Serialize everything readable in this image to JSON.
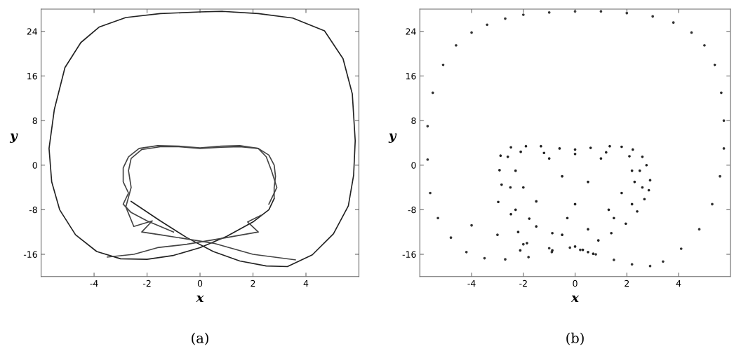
{
  "chart_data": [
    {
      "type": "line",
      "title": "(a)",
      "xlabel": "x",
      "ylabel": "y",
      "xlim": [
        -6,
        6
      ],
      "ylim": [
        -20,
        28
      ],
      "xticks": [
        -4,
        -2,
        0,
        2,
        4
      ],
      "yticks": [
        -16,
        -8,
        0,
        8,
        16,
        24
      ],
      "grid": false,
      "marker": "none",
      "line_style": "solid",
      "series": [
        {
          "color": "#222222",
          "x": [
            -2.6,
            -1.5,
            -0.5,
            0.5,
            1.5,
            2.5,
            3.3,
            4.24,
            5.04,
            5.6,
            5.8,
            5.86,
            5.75,
            5.4,
            4.7,
            3.5,
            2.2,
            0.86,
            0,
            -1.5,
            -2.8,
            -3.8,
            -4.5,
            -5.1,
            -5.5,
            -5.7,
            -5.6,
            -5.3,
            -4.7,
            -3.9,
            -3,
            -2,
            -1,
            0,
            1,
            2,
            2.6,
            2.8
          ],
          "values": [
            -6.5,
            -10,
            -13,
            -15.5,
            -17.2,
            -18.1,
            -18.2,
            -16.1,
            -12.3,
            -7.3,
            -1.8,
            4.4,
            12.8,
            19.1,
            24.1,
            26.4,
            27.2,
            27.6,
            27.5,
            27.2,
            26.5,
            24.8,
            22,
            17.5,
            10,
            3,
            -3,
            -8,
            -12.5,
            -15.5,
            -16.8,
            -16.9,
            -16.2,
            -14.8,
            -12.8,
            -10.2,
            -8,
            -6
          ]
        },
        {
          "color": "#444444",
          "x": [
            2.8,
            2.8,
            2.85,
            2.8,
            2.6,
            2.2,
            1.5,
            0.8,
            0,
            -0.8,
            -1.6,
            -2.3,
            -2.7,
            -2.9,
            -2.9,
            -2.7,
            -2.9,
            -2.6,
            -2,
            -1
          ],
          "values": [
            -6,
            -4,
            -2,
            0,
            1.8,
            3,
            3.5,
            3.4,
            3.1,
            3.4,
            3.5,
            3,
            1.5,
            -0.5,
            -3,
            -5,
            -7,
            -8.5,
            -10,
            -12
          ]
        },
        {
          "color": "#444444",
          "x": [
            2.6,
            2.9,
            2.7,
            2.5,
            2.2,
            1.5,
            0.8,
            0,
            -0.8,
            -1.5,
            -2.2,
            -2.6,
            -2.7,
            -2.6,
            -2.8,
            -2.5,
            -1.8,
            -2.2,
            -1.5,
            0.5,
            2,
            3.6
          ],
          "values": [
            -7,
            -4,
            -1,
            1.5,
            3,
            3.3,
            3.2,
            3,
            3.3,
            3.3,
            2.8,
            1.2,
            -1,
            -4,
            -7.5,
            -11,
            -10,
            -12,
            -12.5,
            -14,
            -16,
            -17
          ]
        },
        {
          "color": "#444444",
          "x": [
            2.3,
            1.8,
            2.2,
            1,
            -0.5,
            -1.6,
            -2.5,
            -3.5
          ],
          "values": [
            -9,
            -10.2,
            -12,
            -13,
            -14.2,
            -14.8,
            -16,
            -16.5
          ]
        }
      ]
    },
    {
      "type": "scatter",
      "title": "(b)",
      "xlabel": "x",
      "ylabel": "y",
      "xlim": [
        -6,
        6
      ],
      "ylim": [
        -20,
        28
      ],
      "xticks": [
        -4,
        -2,
        0,
        2,
        4
      ],
      "yticks": [
        -16,
        -8,
        0,
        8,
        16,
        24
      ],
      "grid": false,
      "marker": "circle",
      "series": [
        {
          "color": "#333333",
          "x": [
            0,
            1,
            2,
            3,
            3.8,
            4.5,
            5,
            5.4,
            5.65,
            5.75,
            5.75,
            5.6,
            5.3,
            4.8,
            4.1,
            3.4,
            2.9,
            2.2,
            1.5,
            0.8,
            0.2,
            -1,
            -2,
            -2.7,
            -3.4,
            -4,
            -4.6,
            -5.1,
            -5.5,
            -5.7,
            -5.7,
            -5.6,
            -5.3,
            -4.8,
            -4.2,
            -3.5,
            -2.7,
            -1.8,
            -0.9,
            -0.2,
            -1,
            -2,
            -3,
            -4
          ],
          "values": [
            27.6,
            27.6,
            27.3,
            26.7,
            25.6,
            23.8,
            21.5,
            18,
            13,
            8,
            3,
            -2,
            -7,
            -11.5,
            -15,
            -17.3,
            -18.1,
            -17.8,
            -17,
            -16,
            -15.2,
            27.4,
            27,
            26.3,
            25.2,
            23.8,
            21.5,
            18,
            13,
            7,
            1,
            -5,
            -9.5,
            -13,
            -15.6,
            -16.7,
            -16.9,
            -16.5,
            -15.6,
            -14.8,
            -14.9,
            -14.2,
            -12.5,
            -10.8
          ]
        },
        {
          "color": "#222222",
          "x": [
            -2.88,
            -2.48,
            -1.9,
            -1.32,
            -0.6,
            0,
            0.6,
            1.34,
            1.8,
            2.23,
            2.6,
            2.76,
            2.9,
            2.85,
            2.68,
            2.4,
            1.96,
            1.4,
            0.9,
            0,
            -0.88,
            -2.12,
            -1.86,
            -0.88,
            -2.2,
            -1.77,
            -2.48,
            -2.97,
            -2.84,
            -2.92,
            -2.6,
            -2.1,
            -1.2,
            0,
            1.2,
            2.1,
            2.5,
            2.6,
            2.2,
            1.5,
            0.5,
            -0.5,
            -1.5,
            -2.3,
            -2.5,
            0.3,
            0.5,
            0.7,
            -2.3,
            -1,
            1,
            2.2,
            1.8,
            0,
            -1.5,
            -2,
            0.5,
            -0.5,
            1.3,
            -0.3,
            2.3
          ],
          "values": [
            1.7,
            3.2,
            3.4,
            3.4,
            3,
            2.8,
            3.1,
            3.4,
            3.3,
            2.8,
            1.5,
            0,
            -2.7,
            -4.5,
            -6.1,
            -8.3,
            -10.5,
            -12.2,
            -13.5,
            -14.6,
            -15.3,
            -15.3,
            -14,
            -12.2,
            -12,
            -9.6,
            -8.8,
            -6.6,
            -3.5,
            -0.9,
            1.5,
            2.4,
            2.2,
            2,
            2.3,
            1.6,
            -1,
            -4,
            -7,
            -9.5,
            -11.5,
            -12.5,
            -11,
            -8,
            -4,
            -15.2,
            -15.6,
            -15.9,
            -1,
            1.2,
            1.2,
            -1,
            -5,
            -7,
            -6.5,
            -4,
            -3,
            -2,
            -8,
            -9.5,
            -3
          ]
        }
      ]
    }
  ]
}
